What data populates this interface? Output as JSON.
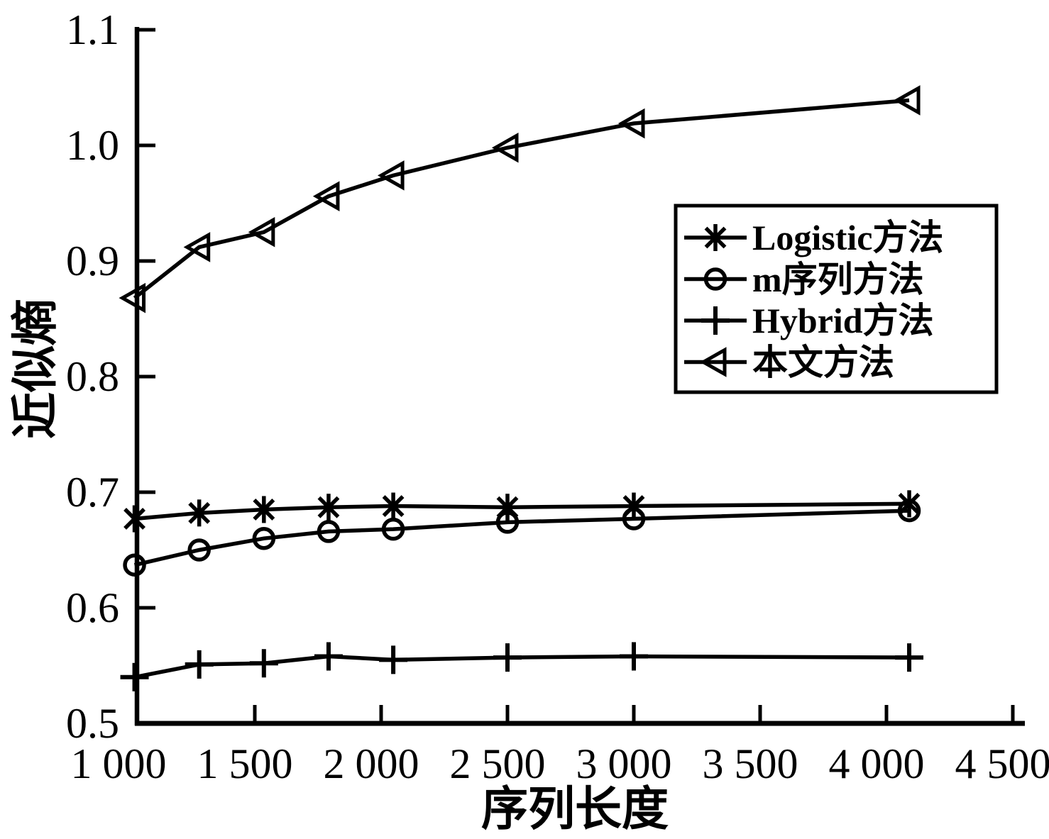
{
  "figure": {
    "background": "#ffffff",
    "ink_color": "#000000"
  },
  "chart_data": {
    "type": "line",
    "title": "",
    "xlabel": "序列长度",
    "ylabel": "近似熵",
    "xlim": [
      1000,
      4550
    ],
    "ylim": [
      0.5,
      1.1
    ],
    "grid": false,
    "legend_position": "upper-right-inside",
    "x_ticks": {
      "values": [
        1000,
        1500,
        2000,
        2500,
        3000,
        3500,
        4000,
        4500
      ],
      "labels": [
        "1 000",
        "1 500",
        "2 000",
        "2 500",
        "3 000",
        "3 500",
        "4 000",
        "4 500"
      ]
    },
    "y_ticks": {
      "values": [
        0.5,
        0.6,
        0.7,
        0.8,
        0.9,
        1.0,
        1.1
      ],
      "labels": [
        "0.5",
        "0.6",
        "0.7",
        "0.8",
        "0.9",
        "1.0",
        "1.1"
      ]
    },
    "x": [
      1024,
      1280,
      1536,
      1792,
      2048,
      2500,
      3000,
      4090
    ],
    "series": [
      {
        "name": "Logistic方法",
        "marker": "asterisk",
        "values": [
          0.677,
          0.682,
          0.685,
          0.687,
          0.688,
          0.687,
          0.688,
          0.69
        ]
      },
      {
        "name": "m序列方法",
        "marker": "circle",
        "values": [
          0.637,
          0.65,
          0.66,
          0.666,
          0.668,
          0.674,
          0.677,
          0.684
        ]
      },
      {
        "name": "Hybrid方法",
        "marker": "plus",
        "values": [
          0.54,
          0.551,
          0.552,
          0.558,
          0.555,
          0.557,
          0.558,
          0.557
        ]
      },
      {
        "name": "本文方法",
        "marker": "triangle-left",
        "values": [
          0.868,
          0.912,
          0.925,
          0.956,
          0.974,
          0.998,
          1.019,
          1.039
        ]
      }
    ]
  }
}
